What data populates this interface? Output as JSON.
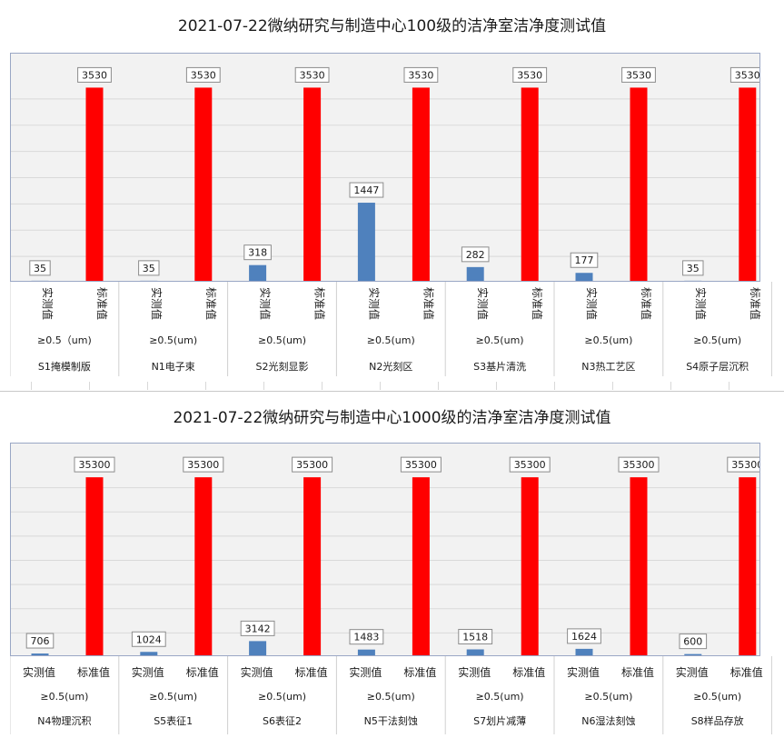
{
  "chart_data": [
    {
      "type": "bar",
      "title": "2021-07-22微纳研究与制造中心100级的洁净室洁净度测试值",
      "series_labels": [
        "实测值",
        "标准值"
      ],
      "series_colors": [
        "#4f81bd",
        "#ff0000"
      ],
      "vertical_series_labels": true,
      "ylim": [
        0,
        3800
      ],
      "particle_size_labels": [
        "≥0.5（um)",
        "≥0.5(um)",
        "≥0.5(um)",
        "≥0.5(um)",
        "≥0.5(um)",
        "≥0.5(um)",
        "≥0.5(um)"
      ],
      "categories": [
        "S1掩模制版",
        "N1电子束",
        "S2光刻显影",
        "N2光刻区",
        "S3基片清洗",
        "N3热工艺区",
        "S4原子层沉积"
      ],
      "series": [
        {
          "name": "实测值",
          "values": [
            35,
            35,
            318,
            1447,
            282,
            177,
            35
          ]
        },
        {
          "name": "标准值",
          "values": [
            3530,
            3530,
            3530,
            3530,
            3530,
            3530,
            3530
          ]
        }
      ],
      "grid": true
    },
    {
      "type": "bar",
      "title": "2021-07-22微纳研究与制造中心1000级的洁净室洁净度测试值",
      "series_labels": [
        "实测值",
        "标准值"
      ],
      "series_colors": [
        "#4f81bd",
        "#ff0000"
      ],
      "vertical_series_labels": false,
      "ylim": [
        0,
        38000
      ],
      "particle_size_labels": [
        "≥0.5(um)",
        "≥0.5(um)",
        "≥0.5(um)",
        "≥0.5(um)",
        "≥0.5(um)",
        "≥0.5(um)",
        "≥0.5(um)"
      ],
      "categories": [
        "N4物理沉积",
        "S5表征1",
        "S6表征2",
        "N5干法刻蚀",
        "S7划片减薄",
        "N6湿法刻蚀",
        "S8样品存放"
      ],
      "series": [
        {
          "name": "实测值",
          "values": [
            706,
            1024,
            3142,
            1483,
            1518,
            1624,
            600
          ]
        },
        {
          "name": "标准值",
          "values": [
            35300,
            35300,
            35300,
            35300,
            35300,
            35300,
            35300
          ]
        }
      ],
      "grid": true
    }
  ]
}
